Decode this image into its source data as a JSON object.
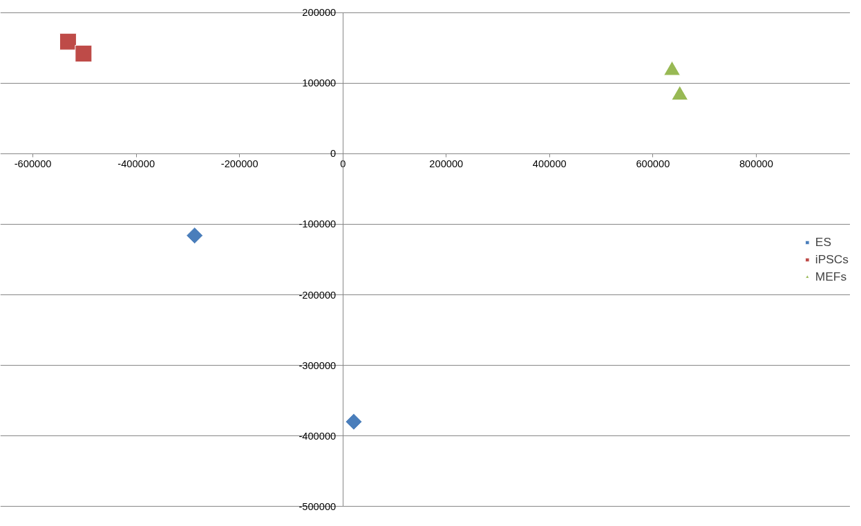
{
  "chart_data": {
    "type": "scatter",
    "xlim": [
      -600000,
      800000
    ],
    "ylim": [
      -500000,
      200000
    ],
    "xticks": [
      -600000,
      -400000,
      -200000,
      0,
      200000,
      400000,
      600000,
      800000
    ],
    "yticks": [
      -500000,
      -400000,
      -300000,
      -200000,
      -100000,
      0,
      100000,
      200000
    ],
    "grid": "y",
    "legend": "right",
    "series": [
      {
        "name": "ES",
        "color": "#4a7ebb",
        "marker": "diamond",
        "x": [
          -287000,
          21000
        ],
        "values": [
          -116000,
          -380000
        ]
      },
      {
        "name": "iPSCs",
        "color": "#be4b48",
        "marker": "square",
        "x": [
          -532000,
          -502000
        ],
        "values": [
          159000,
          142000
        ]
      },
      {
        "name": "MEFs",
        "color": "#98b954",
        "marker": "triangle",
        "x": [
          637000,
          652000
        ],
        "values": [
          118000,
          83000
        ]
      }
    ]
  }
}
